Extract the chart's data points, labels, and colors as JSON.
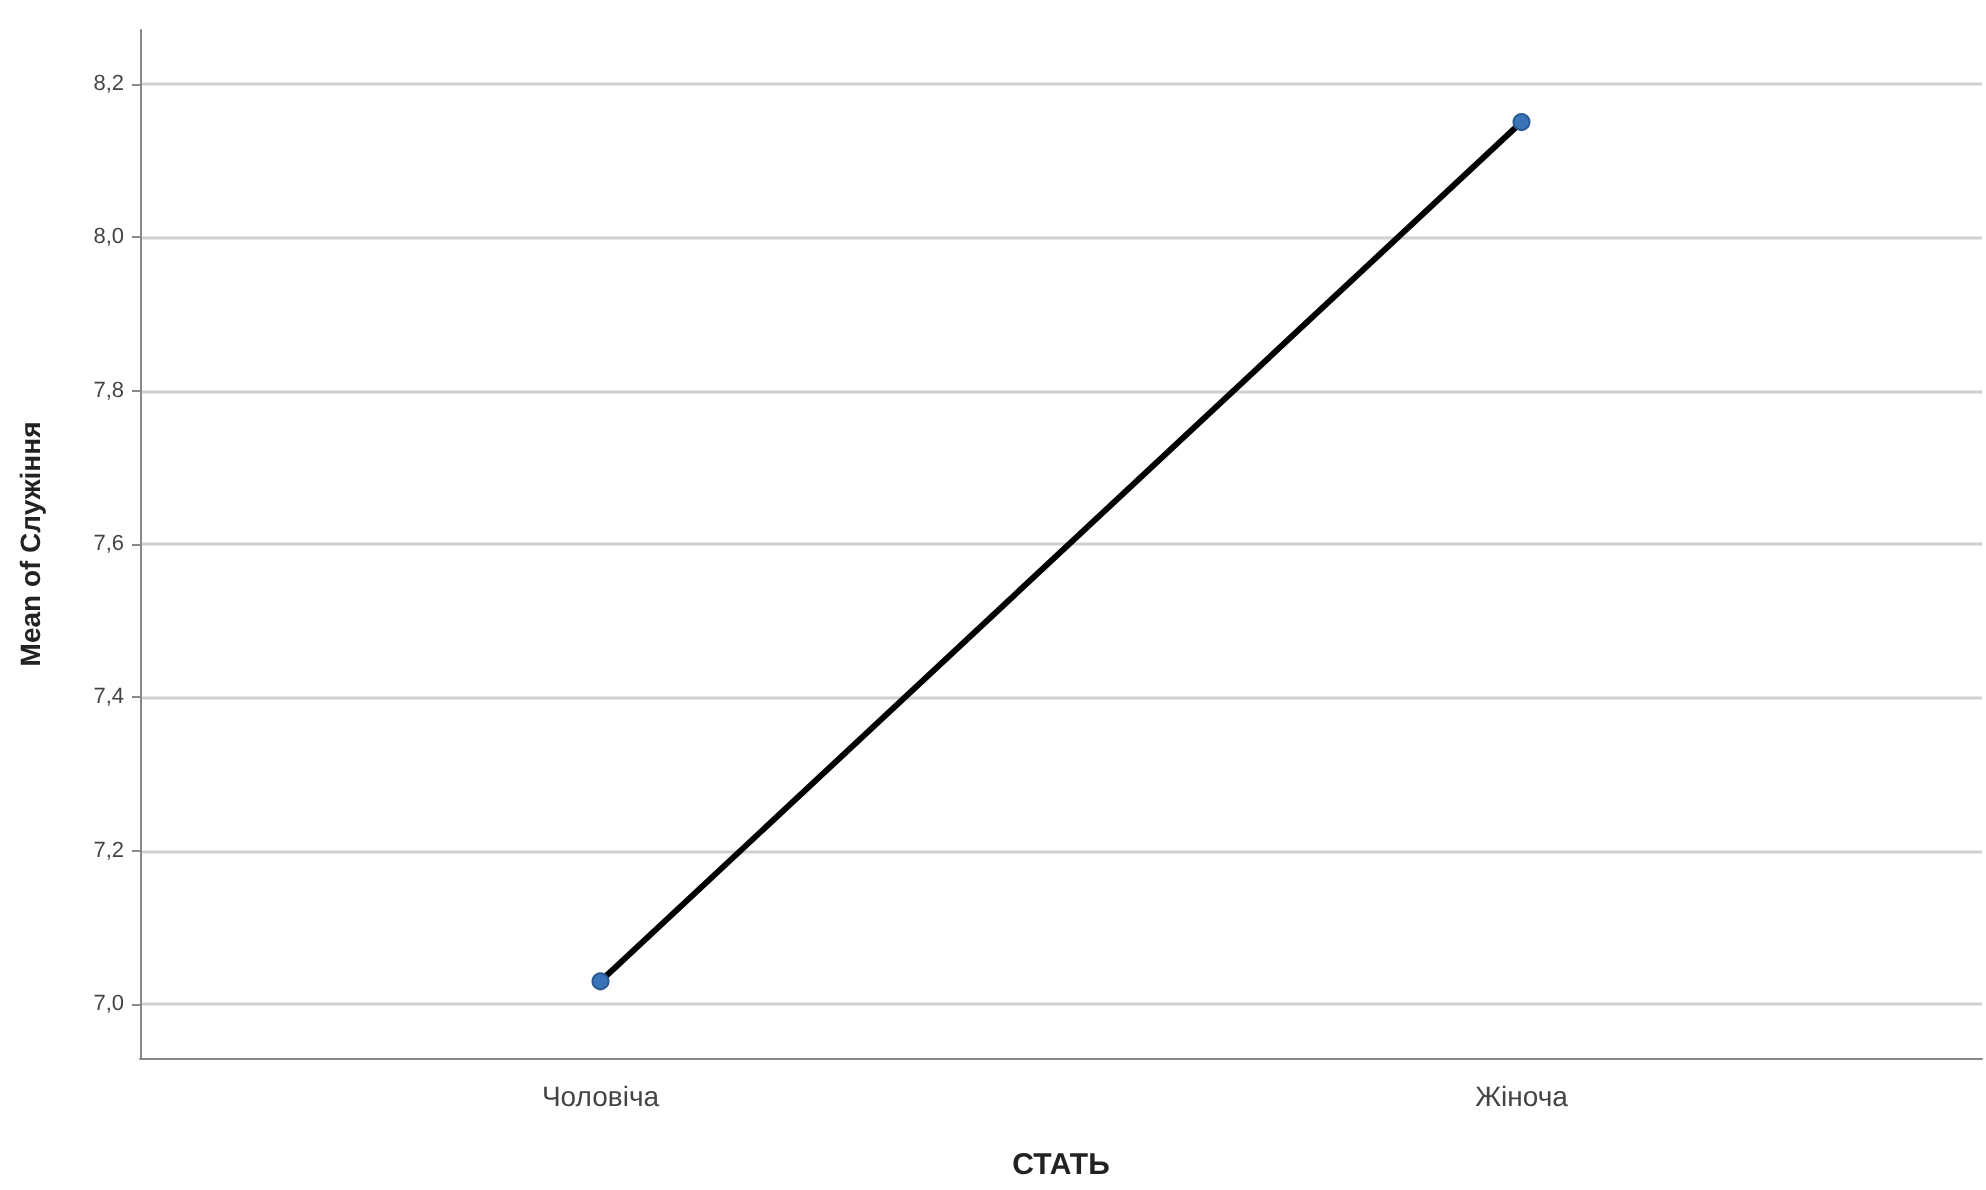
{
  "chart_data": {
    "type": "line",
    "xlabel": "СТАТЬ",
    "ylabel": "Mean of Служіння",
    "categories": [
      "Чоловіча",
      "Жіноча"
    ],
    "series": [
      {
        "color": "#000000",
        "values": [
          7.03,
          8.15
        ]
      }
    ],
    "ylim": [
      6.93,
      8.27
    ],
    "yticks": [
      {
        "value": 7.0,
        "label": "7,0"
      },
      {
        "value": 7.2,
        "label": "7,2"
      },
      {
        "value": 7.4,
        "label": "7,4"
      },
      {
        "value": 7.6,
        "label": "7,6"
      },
      {
        "value": 7.8,
        "label": "7,8"
      },
      {
        "value": 8.0,
        "label": "8,0"
      },
      {
        "value": 8.2,
        "label": "8,2"
      }
    ],
    "grid": "y",
    "marker": "circle",
    "line_style": "solid"
  }
}
